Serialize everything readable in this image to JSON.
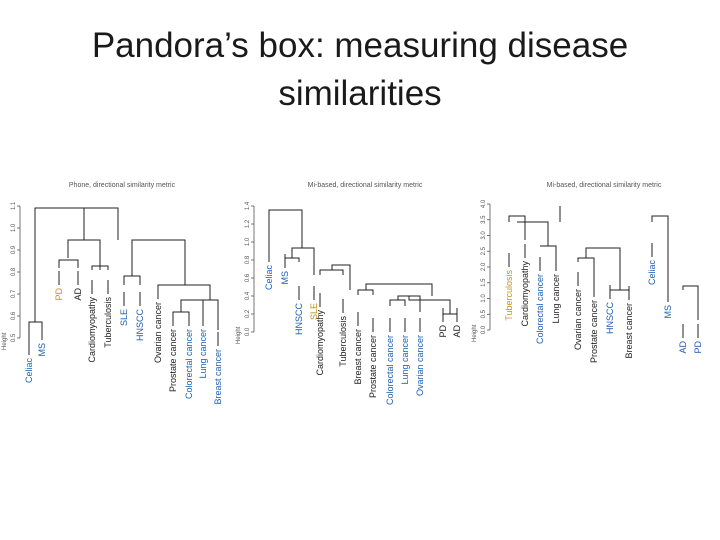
{
  "slide": {
    "title_line1": "Pandora’s box: measuring disease",
    "title_line2": "similarities"
  },
  "colors": {
    "blue": "#1f5fb0",
    "orange": "#c8901e",
    "black": "#222222"
  },
  "chart_data": [
    {
      "type": "dendrogram",
      "title": "Phone, directional similarity metric",
      "ylabel": "Height",
      "ticks": [
        "0.5",
        "0.6",
        "0.7",
        "0.8",
        "0.9",
        "1.0",
        "1.1"
      ],
      "leaves": [
        {
          "label": "Celiac",
          "color": "blue"
        },
        {
          "label": "MS",
          "color": "blue"
        },
        {
          "label": "PD",
          "color": "orange"
        },
        {
          "label": "AD",
          "color": "black"
        },
        {
          "label": "Cardiomyopathy",
          "color": "black"
        },
        {
          "label": "Tuberculosis",
          "color": "black"
        },
        {
          "label": "SLE",
          "color": "blue"
        },
        {
          "label": "HNSCC",
          "color": "blue"
        },
        {
          "label": "Ovarian cancer",
          "color": "black"
        },
        {
          "label": "Prostate cancer",
          "color": "black"
        },
        {
          "label": "Colorectal cancer",
          "color": "blue"
        },
        {
          "label": "Lung cancer",
          "color": "blue"
        },
        {
          "label": "Breast cancer",
          "color": "blue"
        }
      ]
    },
    {
      "type": "dendrogram",
      "title": "Mi-based, directional similarity metric",
      "ylabel": "Height",
      "ticks": [
        "0.0",
        "0.2",
        "0.4",
        "0.6",
        "0.8",
        "1.0",
        "1.2",
        "1.4"
      ],
      "leaves": [
        {
          "label": "Celiac",
          "color": "blue"
        },
        {
          "label": "MS",
          "color": "blue"
        },
        {
          "label": "HNSCC",
          "color": "blue"
        },
        {
          "label": "SLE",
          "color": "orange"
        },
        {
          "label": "Cardiomyopathy",
          "color": "black"
        },
        {
          "label": "Tuberculosis",
          "color": "black"
        },
        {
          "label": "Breast cancer",
          "color": "black"
        },
        {
          "label": "Prostate cancer",
          "color": "black"
        },
        {
          "label": "Colorectal cancer",
          "color": "blue"
        },
        {
          "label": "Lung cancer",
          "color": "blue"
        },
        {
          "label": "Ovarian cancer",
          "color": "blue"
        },
        {
          "label": "PD",
          "color": "black"
        },
        {
          "label": "AD",
          "color": "black"
        }
      ]
    },
    {
      "type": "dendrogram",
      "title": "Mi-based, directional similarity metric",
      "ylabel": "Height",
      "ticks": [
        "0.0",
        "0.5",
        "1.0",
        "1.5",
        "2.0",
        "2.5",
        "3.0",
        "3.5",
        "4.0"
      ],
      "leaves": [
        {
          "label": "Tuberculosis",
          "color": "orange"
        },
        {
          "label": "Cardiomyopathy",
          "color": "black"
        },
        {
          "label": "Colorectal cancer",
          "color": "blue"
        },
        {
          "label": "Lung cancer",
          "color": "black"
        },
        {
          "label": "Ovarian cancer",
          "color": "black"
        },
        {
          "label": "Prostate cancer",
          "color": "black"
        },
        {
          "label": "HNSCC",
          "color": "blue"
        },
        {
          "label": "Breast cancer",
          "color": "black"
        },
        {
          "label": "Celiac",
          "color": "blue"
        },
        {
          "label": "MS",
          "color": "blue"
        },
        {
          "label": "AD",
          "color": "blue"
        },
        {
          "label": "PD",
          "color": "blue"
        }
      ]
    }
  ]
}
